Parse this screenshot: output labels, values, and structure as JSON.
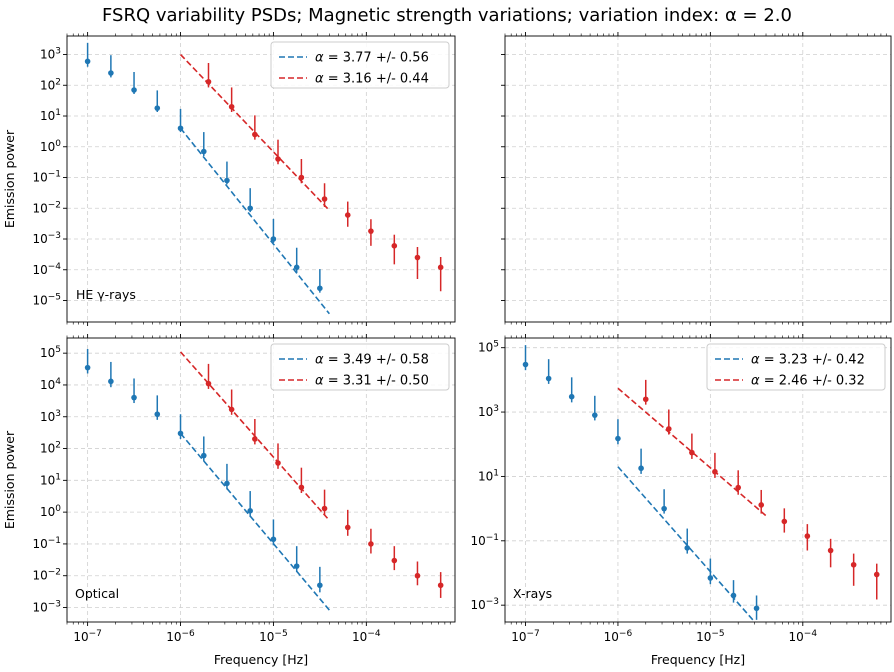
{
  "figure": {
    "title": "FSRQ variability PSDs; Magnetic strength variations; variation index: α = 2.0",
    "colors": {
      "blue": "#1f77b4",
      "red": "#d62728",
      "grid": "#d0d0d0"
    }
  },
  "chart_data": [
    {
      "id": "he_gamma",
      "type": "scatter",
      "panel_label": "HE γ-rays",
      "xlabel": "",
      "ylabel": "Emission power",
      "xscale": "log",
      "yscale": "log",
      "xlim": [
        6e-08,
        0.0009
      ],
      "ylim": [
        2e-06,
        4000.0
      ],
      "xticks": [
        {
          "v": 1e-07,
          "m": "10",
          "e": "−7"
        },
        {
          "v": 1e-06,
          "m": "10",
          "e": "−6"
        },
        {
          "v": 1e-05,
          "m": "10",
          "e": "−5"
        },
        {
          "v": 0.0001,
          "m": "10",
          "e": "−4"
        }
      ],
      "show_xtick_labels": false,
      "yticks": [
        {
          "v": 1e-05,
          "m": "10",
          "e": "−5"
        },
        {
          "v": 0.0001,
          "m": "10",
          "e": "−4"
        },
        {
          "v": 0.001,
          "m": "10",
          "e": "−3"
        },
        {
          "v": 0.01,
          "m": "10",
          "e": "−2"
        },
        {
          "v": 0.1,
          "m": "10",
          "e": "−1"
        },
        {
          "v": 1,
          "m": "10",
          "e": "0"
        },
        {
          "v": 10,
          "m": "10",
          "e": "1"
        },
        {
          "v": 100,
          "m": "10",
          "e": "2"
        },
        {
          "v": 1000,
          "m": "10",
          "e": "3"
        }
      ],
      "legend_position": "top-right",
      "series": [
        {
          "name": "α = 3.77 +/- 0.56",
          "color": "blue",
          "x": [
            1e-07,
            1.78e-07,
            3.16e-07,
            5.62e-07,
            1e-06,
            1.78e-06,
            3.16e-06,
            5.62e-06,
            1e-05,
            1.78e-05,
            3.16e-05
          ],
          "y": [
            600,
            250,
            70,
            18,
            4,
            0.7,
            0.08,
            0.01,
            0.001,
            0.00012,
            2.5e-05
          ],
          "err_lo": [
            200,
            70,
            18,
            4.5,
            1,
            0.2,
            0.02,
            0.0025,
            0.00025,
            4e-05,
            7e-06
          ],
          "err_hi": [
            1800,
            700,
            200,
            50,
            13,
            2.3,
            0.25,
            0.035,
            0.0035,
            0.0004,
            8e-05
          ],
          "fit": {
            "x": [
              1e-06,
              4e-05
            ],
            "y": [
              4,
              3.7e-06
            ]
          }
        },
        {
          "name": "α = 3.16 +/- 0.44",
          "color": "red",
          "x": [
            2e-06,
            3.55e-06,
            6.31e-06,
            1.12e-05,
            2e-05,
            3.55e-05,
            6.31e-05,
            0.000112,
            0.0002,
            0.000355,
            0.000631
          ],
          "y": [
            130,
            20,
            2.5,
            0.4,
            0.1,
            0.02,
            0.006,
            0.0018,
            0.0006,
            0.00025,
            0.00012
          ],
          "err_lo": [
            45,
            6.5,
            0.8,
            0.13,
            0.035,
            0.009,
            0.0035,
            0.0012,
            0.00045,
            0.0002,
            0.0001
          ],
          "err_hi": [
            400,
            65,
            8,
            1.3,
            0.3,
            0.045,
            0.0105,
            0.0026,
            0.00078,
            0.0003,
            0.00014
          ],
          "fit": {
            "x": [
              1e-06,
              4e-05
            ],
            "y": [
              1000,
              0.0085
            ]
          }
        }
      ]
    },
    {
      "id": "empty",
      "type": "scatter",
      "panel_label": "",
      "xscale": "log",
      "yscale": "log",
      "xlim": [
        6e-08,
        0.0009
      ],
      "ylim": [
        2e-06,
        4000.0
      ],
      "xticks": [
        {
          "v": 1e-07
        },
        {
          "v": 1e-06
        },
        {
          "v": 1e-05
        },
        {
          "v": 0.0001
        }
      ],
      "yticks_only": [
        1e-05,
        0.0001,
        0.001,
        0.01,
        0.1,
        1,
        10,
        100,
        1000
      ],
      "show_xtick_labels": false,
      "show_ytick_labels": false,
      "series": []
    },
    {
      "id": "optical",
      "type": "scatter",
      "panel_label": "Optical",
      "xlabel": "Frequency [Hz]",
      "ylabel": "Emission power",
      "xscale": "log",
      "yscale": "log",
      "xlim": [
        6e-08,
        0.0009
      ],
      "ylim": [
        0.00035,
        300000.0
      ],
      "xticks": [
        {
          "v": 1e-07,
          "m": "10",
          "e": "−7"
        },
        {
          "v": 1e-06,
          "m": "10",
          "e": "−6"
        },
        {
          "v": 1e-05,
          "m": "10",
          "e": "−5"
        },
        {
          "v": 0.0001,
          "m": "10",
          "e": "−4"
        }
      ],
      "show_xtick_labels": true,
      "yticks": [
        {
          "v": 0.001,
          "m": "10",
          "e": "−3"
        },
        {
          "v": 0.01,
          "m": "10",
          "e": "−2"
        },
        {
          "v": 0.1,
          "m": "10",
          "e": "−1"
        },
        {
          "v": 1,
          "m": "10",
          "e": "0"
        },
        {
          "v": 10,
          "m": "10",
          "e": "1"
        },
        {
          "v": 100,
          "m": "10",
          "e": "2"
        },
        {
          "v": 1000,
          "m": "10",
          "e": "3"
        },
        {
          "v": 10000,
          "m": "10",
          "e": "4"
        },
        {
          "v": 100000,
          "m": "10",
          "e": "5"
        }
      ],
      "legend_position": "top-right",
      "series": [
        {
          "name": "α = 3.49 +/- 0.58",
          "color": "blue",
          "x": [
            1e-07,
            1.78e-07,
            3.16e-07,
            5.62e-07,
            1e-06,
            1.78e-06,
            3.16e-06,
            5.62e-06,
            1e-05,
            1.78e-05,
            3.16e-05
          ],
          "y": [
            35000,
            13000,
            4000,
            1200,
            300,
            60,
            8,
            1.1,
            0.14,
            0.02,
            0.005
          ],
          "err_lo": [
            12000,
            4500,
            1300,
            400,
            100,
            20,
            2.8,
            0.4,
            0.05,
            0.007,
            0.002
          ],
          "err_hi": [
            100000,
            40000,
            12000,
            3500,
            900,
            180,
            25,
            3.5,
            0.45,
            0.065,
            0.014
          ],
          "fit": {
            "x": [
              1e-06,
              4e-05
            ],
            "y": [
              300,
              0.00083
            ]
          }
        },
        {
          "name": "α = 3.31 +/- 0.50",
          "color": "red",
          "x": [
            2e-06,
            3.55e-06,
            6.31e-06,
            1.12e-05,
            2e-05,
            3.55e-05,
            6.31e-05,
            0.000112,
            0.0002,
            0.000355,
            0.000631
          ],
          "y": [
            11000,
            1700,
            200,
            35,
            6,
            1.3,
            0.33,
            0.1,
            0.03,
            0.01,
            0.005
          ],
          "err_lo": [
            3500,
            550,
            65,
            12,
            2,
            0.5,
            0.15,
            0.05,
            0.015,
            0.005,
            0.003
          ],
          "err_hi": [
            35000,
            5500,
            650,
            110,
            19,
            3.8,
            0.85,
            0.2,
            0.055,
            0.018,
            0.008
          ],
          "fit": {
            "x": [
              1e-06,
              4e-05
            ],
            "y": [
              110000,
              0.55
            ]
          }
        }
      ]
    },
    {
      "id": "xrays",
      "type": "scatter",
      "panel_label": "X-rays",
      "xlabel": "Frequency [Hz]",
      "ylabel": "",
      "xscale": "log",
      "yscale": "log",
      "xlim": [
        6e-08,
        0.0009
      ],
      "ylim": [
        0.0003,
        200000.0
      ],
      "xticks": [
        {
          "v": 1e-07,
          "m": "10",
          "e": "−7"
        },
        {
          "v": 1e-06,
          "m": "10",
          "e": "−6"
        },
        {
          "v": 1e-05,
          "m": "10",
          "e": "−5"
        },
        {
          "v": 0.0001,
          "m": "10",
          "e": "−4"
        }
      ],
      "show_xtick_labels": true,
      "yticks": [
        {
          "v": 0.001,
          "m": "10",
          "e": "−3"
        },
        {
          "v": 0.1,
          "m": "10",
          "e": "−1"
        },
        {
          "v": 10,
          "m": "10",
          "e": "1"
        },
        {
          "v": 1000,
          "m": "10",
          "e": "3"
        },
        {
          "v": 100000,
          "m": "10",
          "e": "5"
        }
      ],
      "legend_position": "top-right",
      "series": [
        {
          "name": "α = 3.23 +/- 0.42",
          "color": "blue",
          "x": [
            1e-07,
            1.78e-07,
            3.16e-07,
            5.62e-07,
            1e-06,
            1.78e-06,
            3.16e-06,
            5.62e-06,
            1e-05,
            1.78e-05,
            3.16e-05
          ],
          "y": [
            30000,
            11000,
            3000,
            800,
            150,
            18,
            1,
            0.06,
            0.007,
            0.002,
            0.0008
          ],
          "err_lo": [
            10000,
            3500,
            1000,
            250,
            50,
            6,
            0.3,
            0.02,
            0.0025,
            0.0008,
            0.00045
          ],
          "err_hi": [
            90000,
            33000,
            9000,
            2400,
            450,
            55,
            3,
            0.18,
            0.021,
            0.004,
            0.0012
          ],
          "fit": {
            "x": [
              1e-06,
              4e-05
            ],
            "y": [
              20,
              0.00012
            ]
          }
        },
        {
          "name": "α = 2.46 +/- 0.32",
          "color": "red",
          "x": [
            2e-06,
            3.55e-06,
            6.31e-06,
            1.12e-05,
            2e-05,
            3.55e-05,
            6.31e-05,
            0.000112,
            0.0002,
            0.000355,
            0.000631
          ],
          "y": [
            2500,
            300,
            55,
            14,
            4.5,
            1.3,
            0.4,
            0.14,
            0.05,
            0.018,
            0.009
          ],
          "err_lo": [
            800,
            100,
            20,
            5,
            1.8,
            0.6,
            0.22,
            0.09,
            0.035,
            0.014,
            0.0075
          ],
          "err_hi": [
            7500,
            900,
            160,
            40,
            11,
            2.5,
            0.62,
            0.19,
            0.065,
            0.022,
            0.0105
          ],
          "fit": {
            "x": [
              1e-06,
              4e-05
            ],
            "y": [
              5500,
              0.6
            ]
          }
        }
      ]
    }
  ]
}
